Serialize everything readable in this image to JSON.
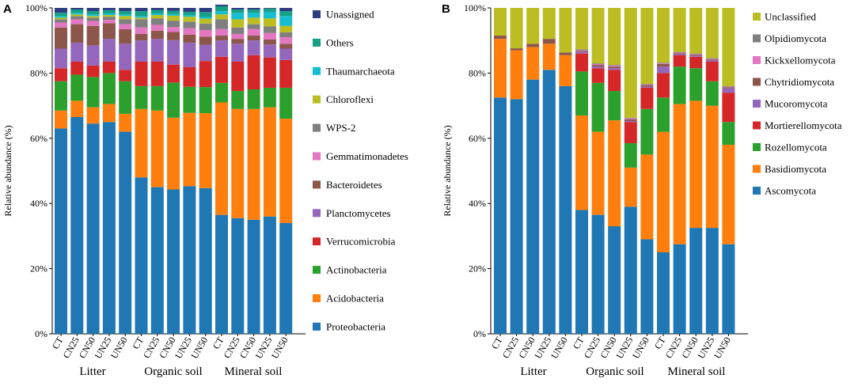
{
  "chart_data": [
    {
      "panel_label": "A",
      "type": "stacked_bar",
      "ylabel": "Relative abundance (%)",
      "ylim": [
        0,
        100
      ],
      "yticks": [
        "0%",
        "20%",
        "40%",
        "60%",
        "80%",
        "100%"
      ],
      "categories": [
        "CT",
        "CN25",
        "CN50",
        "UN25",
        "UN50",
        "CT",
        "CN25",
        "CN50",
        "UN25",
        "UN50",
        "CT",
        "CN25",
        "CN50",
        "UN25",
        "UN50"
      ],
      "groups": [
        {
          "name": "Litter",
          "count": 5
        },
        {
          "name": "Organic soil",
          "count": 5
        },
        {
          "name": "Mineral soil",
          "count": 5
        }
      ],
      "legend_order": [
        "Unassigned",
        "Others",
        "Thaumarchaeota",
        "Chloroflexi",
        "WPS-2",
        "Gemmatimonadetes",
        "Bacteroidetes",
        "Planctomycetes",
        "Verrucomicrobia",
        "Actinobacteria",
        "Acidobacteria",
        "Proteobacteria"
      ],
      "series": [
        {
          "name": "Proteobacteria",
          "color": "#1f77b4",
          "values": [
            63,
            66.5,
            64.5,
            65,
            62,
            48,
            45,
            44.3,
            45.3,
            44.7,
            36.5,
            35.5,
            35,
            36,
            34
          ]
        },
        {
          "name": "Acidobacteria",
          "color": "#ff7f0e",
          "values": [
            5.5,
            5,
            5,
            5.5,
            5.5,
            21,
            23.5,
            22,
            22.5,
            23,
            34.5,
            33.5,
            34,
            33.5,
            32
          ]
        },
        {
          "name": "Actinobacteria",
          "color": "#2ca02c",
          "values": [
            9,
            8,
            9.3,
            9.5,
            10,
            7,
            7.5,
            10.8,
            8,
            8,
            6,
            5.5,
            6,
            6,
            9.5
          ]
        },
        {
          "name": "Verrucomicrobia",
          "color": "#d62728",
          "values": [
            4,
            4,
            3.5,
            3.5,
            3.5,
            7.5,
            7.5,
            5.5,
            6,
            8,
            8,
            9,
            10.5,
            9.3,
            8.5
          ]
        },
        {
          "name": "Planctomycetes",
          "color": "#9467bd",
          "values": [
            6,
            5.8,
            6.2,
            7,
            8,
            6.5,
            7,
            7.5,
            7.5,
            5,
            5,
            5.5,
            4.5,
            4,
            3.5
          ]
        },
        {
          "name": "Bacteroidetes",
          "color": "#8c564b",
          "values": [
            6.5,
            5.7,
            6,
            4.8,
            4.5,
            2,
            2.5,
            2.5,
            2.5,
            2.5,
            1.5,
            1.5,
            1.5,
            1.5,
            1.5
          ]
        },
        {
          "name": "Gemmatimonadetes",
          "color": "#e377c2",
          "values": [
            1.5,
            1.5,
            1.5,
            1,
            1.5,
            2,
            1.8,
            1.5,
            2,
            2,
            2,
            1.5,
            2,
            2,
            2
          ]
        },
        {
          "name": "WPS-2",
          "color": "#7f7f7f",
          "values": [
            1,
            1,
            1,
            1,
            1.5,
            2.5,
            2,
            2,
            2,
            2,
            3,
            2,
            1.5,
            2,
            1.5
          ]
        },
        {
          "name": "Chloroflexi",
          "color": "#bcbd22",
          "values": [
            0.5,
            0.5,
            0.5,
            0.5,
            1,
            0.5,
            1,
            1.5,
            1.5,
            1.5,
            1.5,
            2.5,
            2,
            2.5,
            2
          ]
        },
        {
          "name": "Thaumarchaeota",
          "color": "#17becf",
          "values": [
            0.5,
            0.5,
            0.5,
            0.5,
            0.5,
            0.5,
            0.5,
            0.5,
            0.5,
            0.5,
            1,
            2,
            1.5,
            2,
            3
          ]
        },
        {
          "name": "Others",
          "color": "#16a085",
          "values": [
            1,
            1,
            1,
            1,
            1,
            1.5,
            1,
            1,
            1,
            1.5,
            1.5,
            1,
            1,
            1,
            1.5
          ]
        },
        {
          "name": "Unassigned",
          "color": "#2c3e80",
          "values": [
            1.5,
            0.5,
            1,
            0.7,
            1,
            1,
            0.7,
            0.9,
            1.2,
            1.3,
            0.5,
            0.5,
            0.5,
            0.2,
            1
          ]
        }
      ]
    },
    {
      "panel_label": "B",
      "type": "stacked_bar",
      "ylabel": "Relative abundance (%)",
      "ylim": [
        0,
        100
      ],
      "yticks": [
        "0%",
        "20%",
        "40%",
        "60%",
        "80%",
        "100%"
      ],
      "categories": [
        "CT",
        "CN25",
        "CN50",
        "UN25",
        "UN50",
        "CT",
        "CN25",
        "CN50",
        "UN25",
        "UN50",
        "CT",
        "CN25",
        "CN50",
        "UN25",
        "UN50"
      ],
      "groups": [
        {
          "name": "Litter",
          "count": 5
        },
        {
          "name": "Organic soil",
          "count": 5
        },
        {
          "name": "Mineral soil",
          "count": 5
        }
      ],
      "legend_order": [
        "Unclassified",
        "Olpidiomycota",
        "Kickxellomycota",
        "Chytridiomycota",
        "Mucoromycota",
        "Mortierellomycota",
        "Rozellomycota",
        "Basidiomycota",
        "Ascomycota"
      ],
      "series": [
        {
          "name": "Ascomycota",
          "color": "#1f77b4",
          "values": [
            72.5,
            72,
            78,
            81,
            76,
            38,
            36.5,
            33,
            39,
            29,
            25,
            27.5,
            32.5,
            32.5,
            27.5
          ]
        },
        {
          "name": "Basidiomycota",
          "color": "#ff7f0e",
          "values": [
            18,
            15,
            10,
            8,
            9.5,
            29,
            25.5,
            32.5,
            12,
            26,
            37,
            43,
            39,
            37.5,
            30.5
          ]
        },
        {
          "name": "Rozellomycota",
          "color": "#2ca02c",
          "values": [
            0,
            0,
            0,
            0,
            0,
            13.5,
            15,
            9,
            7.5,
            14,
            10.5,
            11.5,
            10,
            7.5,
            7
          ]
        },
        {
          "name": "Mortierellomycota",
          "color": "#d62728",
          "values": [
            0,
            0,
            0,
            0,
            0,
            5.5,
            4.5,
            6.5,
            6.5,
            6.5,
            7.5,
            3.5,
            3.5,
            6,
            9
          ]
        },
        {
          "name": "Mucoromycota",
          "color": "#9467bd",
          "values": [
            0,
            0,
            0,
            0,
            0,
            0.5,
            0.5,
            0.5,
            0.3,
            0.3,
            2,
            0.3,
            0.3,
            0.4,
            1.3
          ]
        },
        {
          "name": "Chytridiomycota",
          "color": "#8c564b",
          "values": [
            1,
            0.6,
            1,
            1.5,
            0.8,
            0.3,
            0.5,
            0.5,
            0.5,
            0.5,
            0.8,
            0.3,
            0.3,
            0.3,
            0.3
          ]
        },
        {
          "name": "Kickxellomycota",
          "color": "#e377c2",
          "values": [
            0,
            0,
            0,
            0,
            0,
            0.2,
            0.3,
            0.3,
            0.3,
            0.2,
            0.2,
            0.2,
            0.2,
            0.2,
            0.2
          ]
        },
        {
          "name": "Olpidiomycota",
          "color": "#7f7f7f",
          "values": [
            0,
            0,
            0,
            0,
            0,
            0.3,
            0.2,
            0.2,
            0.2,
            0.2,
            0.2,
            0.2,
            0.2,
            0.2,
            0.2
          ]
        },
        {
          "name": "Unclassified",
          "color": "#bcbd22",
          "values": [
            8.5,
            12.4,
            11,
            9.5,
            13.7,
            12.7,
            17,
            17.5,
            33.7,
            23.3,
            16.8,
            13.5,
            14,
            15.4,
            24
          ]
        }
      ]
    }
  ]
}
